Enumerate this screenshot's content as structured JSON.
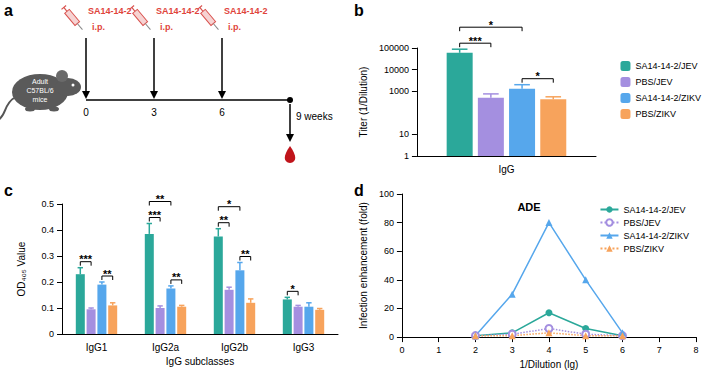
{
  "diagram": {
    "panel": "a",
    "subject": [
      "Adult",
      "C57BL/6",
      "mice"
    ],
    "injection": {
      "vaccine": "SA14-14-2",
      "route": "i.p."
    },
    "doses": [
      0,
      3,
      6
    ],
    "end": {
      "value": 9,
      "label": "9 weeks"
    }
  },
  "chart_data": [
    {
      "panel": "b",
      "type": "bar",
      "categories": [
        "IgG"
      ],
      "ylabel": "Titer (1/Dilution)",
      "log": "y",
      "ylim": [
        1,
        100000
      ],
      "yticks": [
        1,
        10,
        1000,
        10000,
        100000
      ],
      "legend": "right",
      "series": [
        {
          "name": "SA14-14-2/JEV",
          "color": "#2ba89a",
          "values": [
            60000
          ],
          "errors": [
            28000
          ]
        },
        {
          "name": "PBS/JEV",
          "color": "#a48fe0",
          "values": [
            500
          ],
          "errors": [
            250
          ]
        },
        {
          "name": "SA14-14-2/ZIKV",
          "color": "#56a7ec",
          "values": [
            1300
          ],
          "errors": [
            700
          ]
        },
        {
          "name": "PBS/ZIKV",
          "color": "#f7a35c",
          "values": [
            420
          ],
          "errors": [
            130
          ]
        }
      ],
      "significance": [
        {
          "category": "IgG",
          "between": [
            "SA14-14-2/JEV",
            "PBS/JEV"
          ],
          "label": "***"
        },
        {
          "category": "IgG",
          "between": [
            "SA14-14-2/JEV",
            "SA14-14-2/ZIKV"
          ],
          "label": "*"
        },
        {
          "category": "IgG",
          "between": [
            "SA14-14-2/ZIKV",
            "PBS/ZIKV"
          ],
          "label": "*"
        }
      ]
    },
    {
      "panel": "c",
      "type": "bar",
      "categories": [
        "IgG1",
        "IgG2a",
        "IgG2b",
        "IgG3"
      ],
      "xlabel": "IgG subclasses",
      "ylabel": "OD₄₀₅ Value",
      "ylim": [
        0,
        0.5
      ],
      "yticks": [
        0,
        0.1,
        0.2,
        0.3,
        0.4,
        0.5
      ],
      "series": [
        {
          "name": "SA14-14-2/JEV",
          "color": "#2ba89a",
          "values": [
            0.23,
            0.385,
            0.375,
            0.133
          ],
          "errors": [
            0.025,
            0.04,
            0.03,
            0.008
          ]
        },
        {
          "name": "PBS/JEV",
          "color": "#a48fe0",
          "values": [
            0.095,
            0.1,
            0.17,
            0.105
          ],
          "errors": [
            0.005,
            0.008,
            0.01,
            0.005
          ]
        },
        {
          "name": "SA14-14-2/ZIKV",
          "color": "#56a7ec",
          "values": [
            0.19,
            0.175,
            0.245,
            0.105
          ],
          "errors": [
            0.01,
            0.01,
            0.03,
            0.015
          ]
        },
        {
          "name": "PBS/ZIKV",
          "color": "#f7a35c",
          "values": [
            0.11,
            0.105,
            0.12,
            0.093
          ],
          "errors": [
            0.01,
            0.005,
            0.015,
            0.005
          ]
        }
      ],
      "significance": [
        {
          "category": "IgG1",
          "between": [
            "SA14-14-2/JEV",
            "PBS/JEV"
          ],
          "label": "***"
        },
        {
          "category": "IgG1",
          "between": [
            "SA14-14-2/ZIKV",
            "PBS/ZIKV"
          ],
          "label": "**"
        },
        {
          "category": "IgG2a",
          "between": [
            "SA14-14-2/JEV",
            "PBS/JEV"
          ],
          "label": "***"
        },
        {
          "category": "IgG2a",
          "between": [
            "SA14-14-2/JEV",
            "SA14-14-2/ZIKV"
          ],
          "label": "**"
        },
        {
          "category": "IgG2a",
          "between": [
            "SA14-14-2/ZIKV",
            "PBS/ZIKV"
          ],
          "label": "**"
        },
        {
          "category": "IgG2b",
          "between": [
            "SA14-14-2/JEV",
            "PBS/JEV"
          ],
          "label": "**"
        },
        {
          "category": "IgG2b",
          "between": [
            "SA14-14-2/JEV",
            "SA14-14-2/ZIKV"
          ],
          "label": "*"
        },
        {
          "category": "IgG2b",
          "between": [
            "SA14-14-2/ZIKV",
            "PBS/ZIKV"
          ],
          "label": "**"
        },
        {
          "category": "IgG3",
          "between": [
            "SA14-14-2/JEV",
            "PBS/JEV"
          ],
          "label": "*"
        }
      ]
    },
    {
      "panel": "d",
      "type": "line",
      "title": "ADE",
      "xlabel": "1/Dilution (lg)",
      "ylabel": "Infection enhancement (fold)",
      "xlim": [
        0,
        8
      ],
      "xticks": [
        0,
        1,
        2,
        3,
        4,
        5,
        6,
        7,
        8
      ],
      "ylim": [
        0,
        100
      ],
      "yticks": [
        0,
        20,
        40,
        60,
        80,
        100
      ],
      "legend": "upper right",
      "series": [
        {
          "name": "SA14-14-2/JEV",
          "color": "#2ba89a",
          "marker": "circle",
          "line_style": "solid",
          "x": [
            2,
            3,
            4,
            5,
            6
          ],
          "values": [
            1,
            3,
            17,
            6,
            1
          ]
        },
        {
          "name": "PBS/JEV",
          "color": "#a48fe0",
          "marker": "open circle",
          "line_style": "dotted",
          "x": [
            2,
            3,
            4,
            5,
            6
          ],
          "values": [
            1,
            2,
            6,
            2,
            1
          ]
        },
        {
          "name": "SA14-14-2/ZIKV",
          "color": "#56a7ec",
          "marker": "triangle",
          "line_style": "solid",
          "x": [
            2,
            3,
            4,
            5,
            6
          ],
          "values": [
            1,
            30,
            80,
            40,
            3
          ]
        },
        {
          "name": "PBS/ZIKV",
          "color": "#f7a35c",
          "marker": "triangle",
          "line_style": "dotted",
          "x": [
            2,
            3,
            4,
            5,
            6
          ],
          "values": [
            1,
            1,
            3,
            1,
            1
          ]
        }
      ]
    }
  ]
}
